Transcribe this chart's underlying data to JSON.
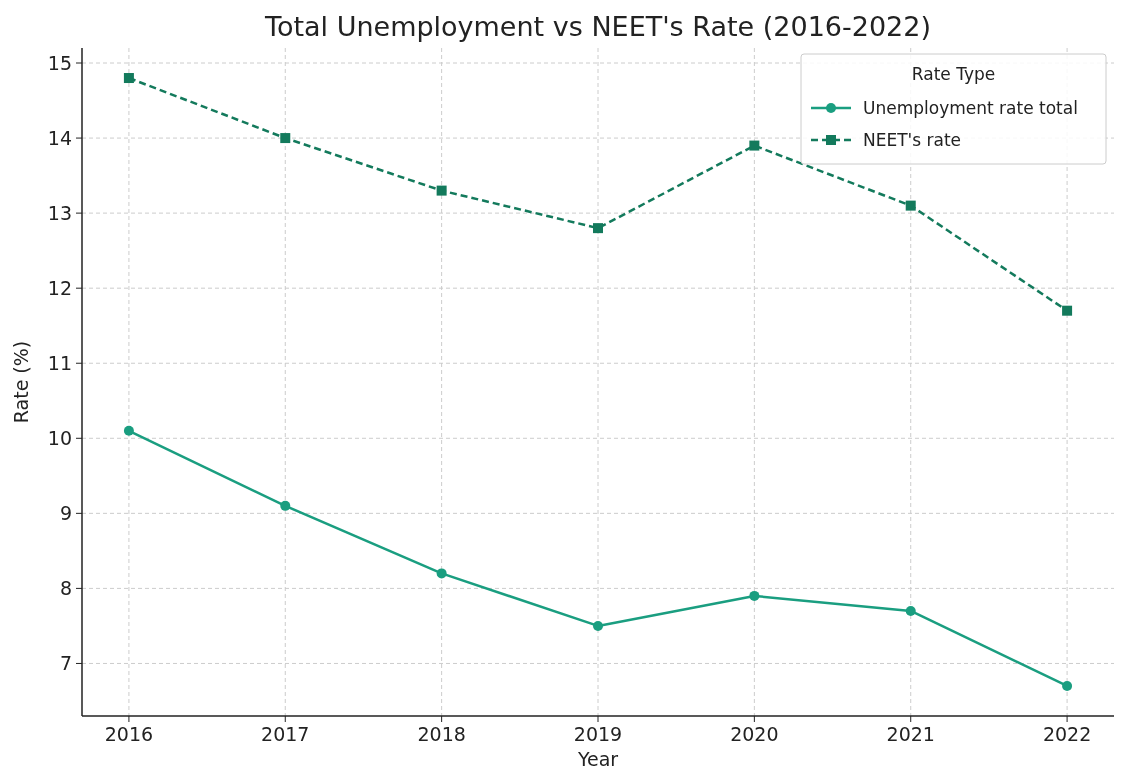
{
  "chart_data": {
    "type": "line",
    "title": "Total Unemployment vs NEET's Rate (2016-2022)",
    "xlabel": "Year",
    "ylabel": "Rate (%)",
    "legend_title": "Rate Type",
    "x": [
      2016,
      2017,
      2018,
      2019,
      2020,
      2021,
      2022
    ],
    "xlim": [
      2015.7,
      2022.3
    ],
    "xticks": [
      2016,
      2017,
      2018,
      2019,
      2020,
      2021,
      2022
    ],
    "ylim": [
      6.3,
      15.2
    ],
    "yticks": [
      7,
      8,
      9,
      10,
      11,
      12,
      13,
      14,
      15
    ],
    "series": [
      {
        "name": "Unemployment rate total",
        "color": "#1a9e80",
        "values": [
          10.1,
          9.1,
          8.2,
          7.5,
          7.9,
          7.7,
          6.7
        ],
        "marker": "circle",
        "line_style": "solid"
      },
      {
        "name": "NEET's rate",
        "color": "#137a5c",
        "values": [
          14.8,
          14.0,
          13.3,
          12.8,
          13.9,
          13.1,
          11.7
        ],
        "marker": "square",
        "line_style": "dashed"
      }
    ],
    "grid": true,
    "legend": "top right"
  }
}
